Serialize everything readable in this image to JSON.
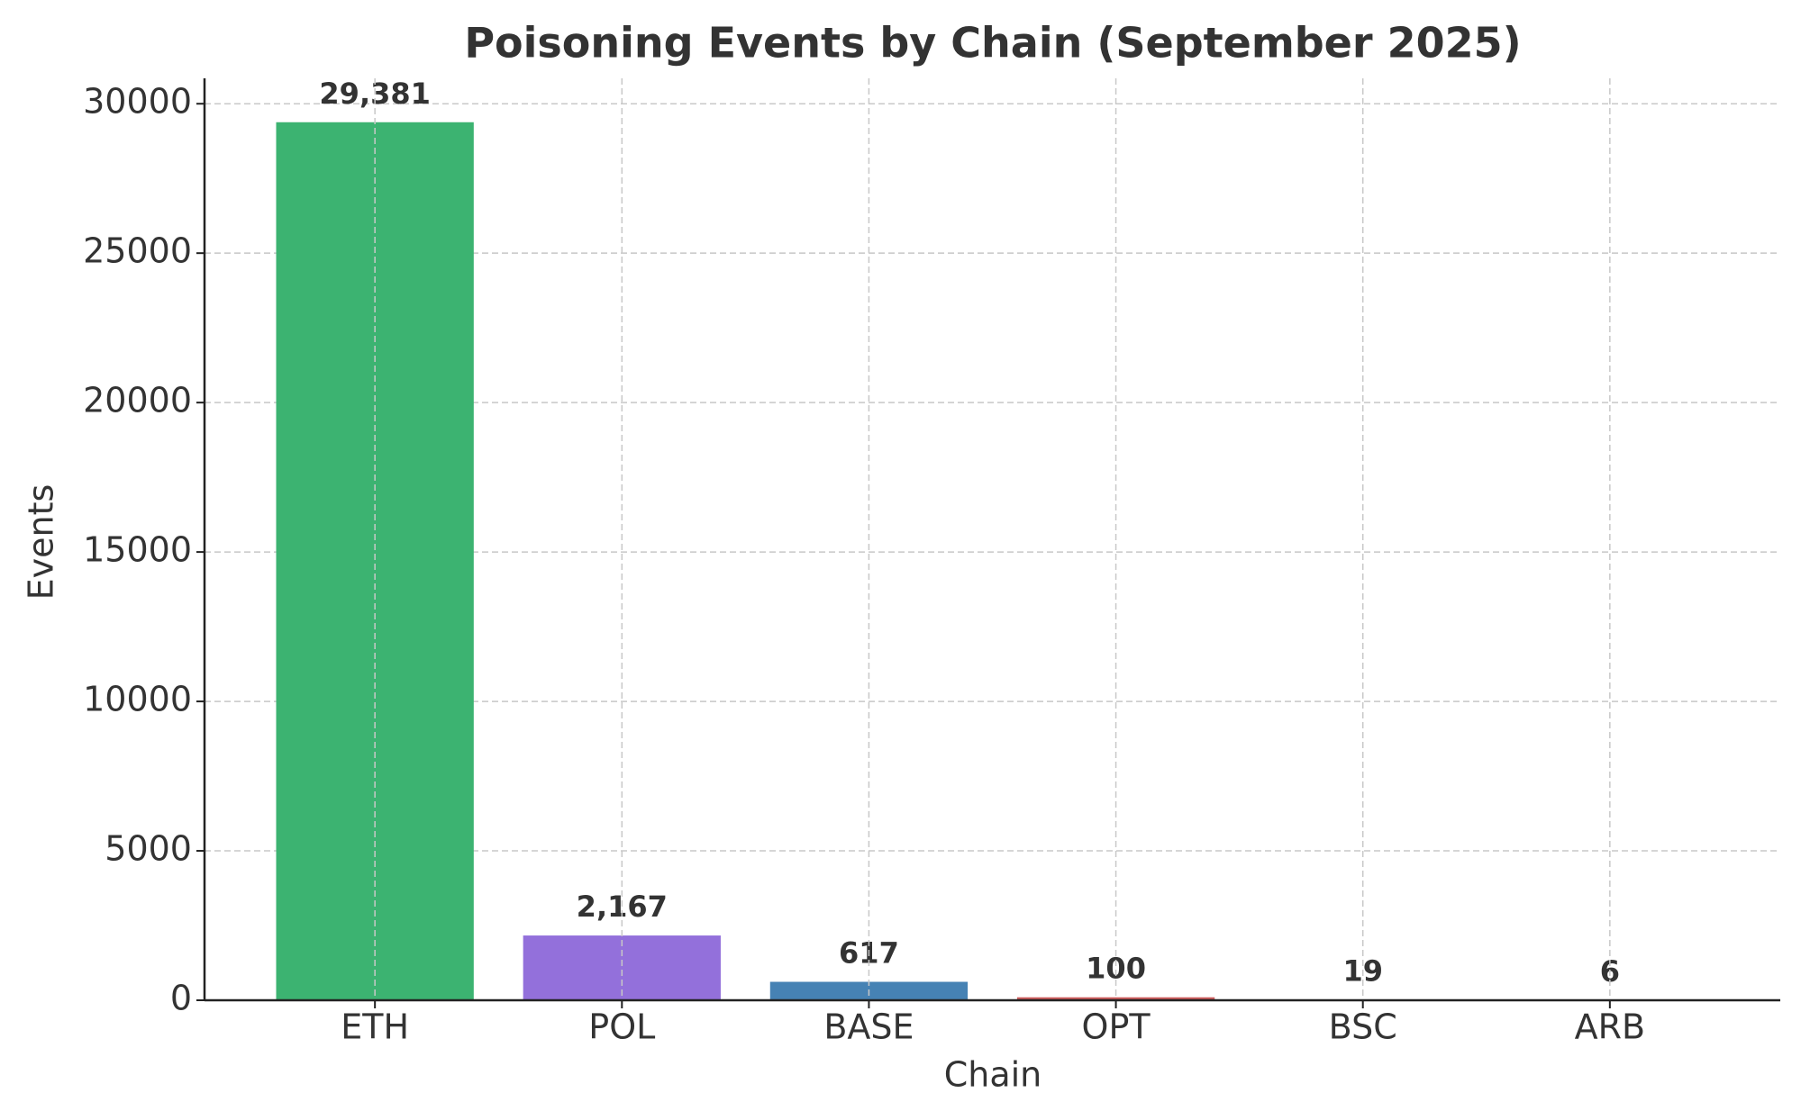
{
  "chart_data": {
    "type": "bar",
    "title": "Poisoning Events by Chain (September 2025)",
    "x_label": "Chain",
    "y_label": "Events",
    "categories": [
      "ETH",
      "POL",
      "BASE",
      "OPT",
      "BSC",
      "ARB"
    ],
    "values": [
      29381,
      2167,
      617,
      100,
      19,
      6
    ],
    "value_labels": [
      "29,381",
      "2,167",
      "617",
      "100",
      "19",
      "6"
    ],
    "colors": [
      "#3cb371",
      "#9370db",
      "#4682b4",
      "#cd5c5c",
      "#daa520",
      "#ff8c00"
    ],
    "ylim": [
      0,
      30850
    ],
    "yticks": [
      0,
      5000,
      10000,
      15000,
      20000,
      25000,
      30000
    ],
    "grid": true
  }
}
